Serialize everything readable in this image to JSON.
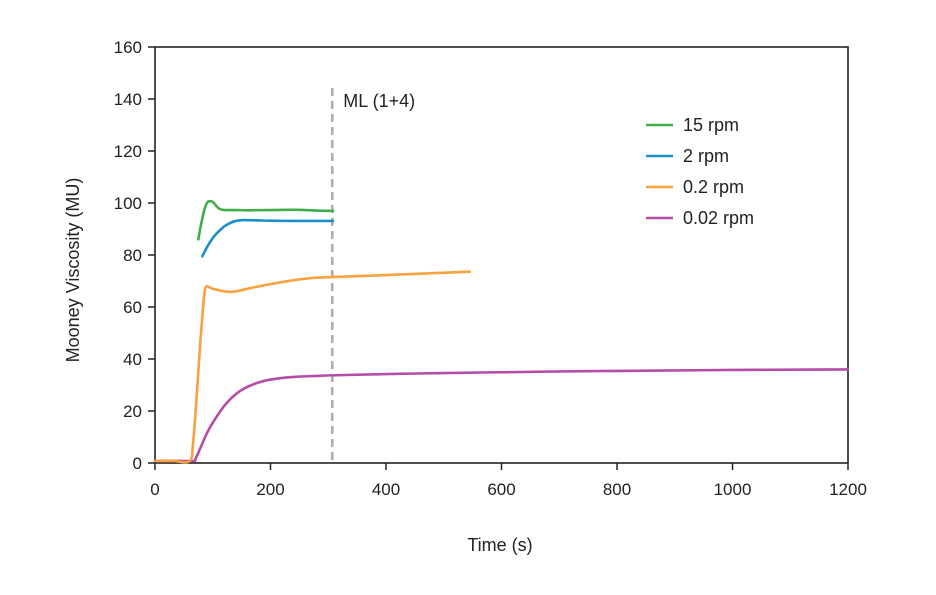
{
  "chart_data": {
    "type": "line",
    "title": "",
    "xlabel": "Time (s)",
    "ylabel": "Mooney Viscosity (MU)",
    "xlim": [
      0,
      1200
    ],
    "ylim": [
      0,
      160
    ],
    "xticks": [
      0,
      200,
      400,
      600,
      800,
      1000,
      1200
    ],
    "yticks": [
      0,
      20,
      40,
      60,
      80,
      100,
      120,
      140,
      160
    ],
    "grid": false,
    "legend_position": "top-right",
    "annotations": [
      {
        "label": "ML (1+4)",
        "x": 307,
        "style": "dashed-vertical-line",
        "color": "#aaaaaa"
      }
    ],
    "series": [
      {
        "name": "15 rpm",
        "color": "#3fae49",
        "x": [
          75,
          80,
          85,
          90,
          95,
          100,
          105,
          110,
          115,
          120,
          140,
          160,
          200,
          240,
          260,
          280,
          300,
          308
        ],
        "y": [
          86,
          92,
          97,
          100,
          100.7,
          100.4,
          99.2,
          98,
          97.5,
          97.3,
          97.3,
          97.2,
          97.3,
          97.4,
          97.3,
          97.1,
          97,
          97
        ]
      },
      {
        "name": "2 rpm",
        "color": "#1a8fc9",
        "x": [
          82,
          90,
          100,
          110,
          120,
          130,
          140,
          150,
          160,
          180,
          200,
          240,
          280,
          308
        ],
        "y": [
          79.5,
          83,
          86.5,
          89,
          91,
          92.3,
          93.1,
          93.4,
          93.4,
          93.3,
          93.2,
          93.1,
          93.1,
          93.1
        ]
      },
      {
        "name": "0.2 rpm",
        "color": "#f7a13f",
        "x": [
          0,
          30,
          60,
          66,
          72,
          78,
          84,
          87,
          90,
          95,
          100,
          110,
          120,
          130,
          140,
          150,
          170,
          200,
          240,
          280,
          320,
          400,
          480,
          545
        ],
        "y": [
          0.8,
          0.8,
          0.8,
          8,
          25,
          45,
          62,
          67,
          68,
          67.5,
          67,
          66.5,
          66,
          65.8,
          66,
          66.5,
          67.5,
          68.8,
          70.3,
          71.3,
          71.6,
          72.3,
          73,
          73.6
        ]
      },
      {
        "name": "0.02 rpm",
        "color": "#b54da6",
        "x": [
          0,
          30,
          66,
          70,
          80,
          90,
          100,
          120,
          140,
          160,
          180,
          200,
          240,
          280,
          320,
          400,
          500,
          600,
          700,
          800,
          900,
          1000,
          1100,
          1200
        ],
        "y": [
          0.8,
          0.8,
          0.8,
          1.5,
          6.5,
          11.5,
          15.5,
          22,
          26.5,
          29.3,
          31,
          32.1,
          33.1,
          33.5,
          33.8,
          34.2,
          34.6,
          34.9,
          35.2,
          35.4,
          35.6,
          35.8,
          35.9,
          36
        ]
      }
    ]
  }
}
